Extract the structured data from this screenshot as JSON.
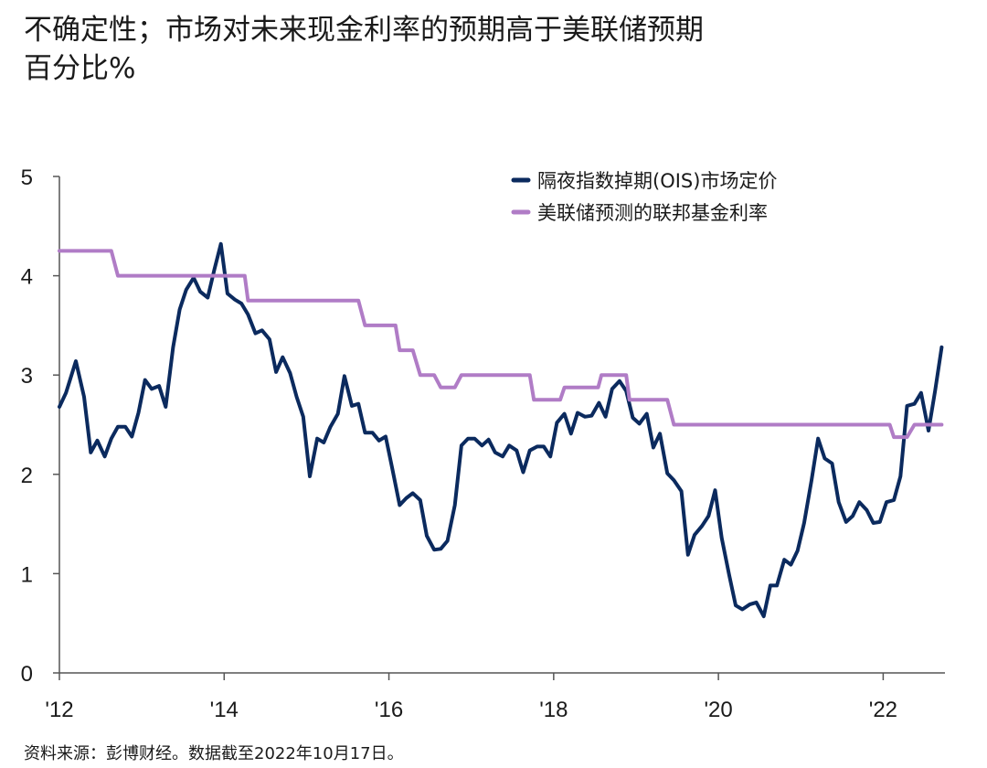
{
  "title": "不确定性；市场对未来现金利率的预期高于美联储预期",
  "subtitle": "百分比%",
  "source": "资料来源：彭博财经。数据截至2022年10月17日。",
  "colors": {
    "ois": "#0b2a5e",
    "fed": "#b07cc6",
    "axis": "#555555"
  },
  "chart_data": {
    "type": "line",
    "xlim": [
      2012,
      2022.75
    ],
    "ylim": [
      0,
      5
    ],
    "x_ticks": [
      2012,
      2014,
      2016,
      2018,
      2020,
      2022
    ],
    "x_tick_labels": [
      "'12",
      "'14",
      "'16",
      "'18",
      "'20",
      "'22"
    ],
    "y_ticks": [
      0,
      1,
      2,
      3,
      4,
      5
    ],
    "y_tick_labels": [
      "0",
      "1",
      "2",
      "3",
      "4",
      "5"
    ],
    "legend_position": "top-right",
    "series": [
      {
        "name": "隔夜指数掉期(OIS)市场定价",
        "color": "#0b2a5e",
        "x": [
          2012.0,
          2012.08,
          2012.2,
          2012.3,
          2012.38,
          2012.46,
          2012.55,
          2012.63,
          2012.71,
          2012.8,
          2012.88,
          2012.96,
          2013.04,
          2013.12,
          2013.21,
          2013.29,
          2013.38,
          2013.46,
          2013.54,
          2013.63,
          2013.71,
          2013.8,
          2013.88,
          2013.96,
          2014.04,
          2014.13,
          2014.21,
          2014.29,
          2014.38,
          2014.46,
          2014.55,
          2014.63,
          2014.71,
          2014.8,
          2014.88,
          2014.96,
          2015.04,
          2015.13,
          2015.21,
          2015.29,
          2015.38,
          2015.46,
          2015.55,
          2015.63,
          2015.71,
          2015.8,
          2015.88,
          2015.96,
          2016.04,
          2016.13,
          2016.21,
          2016.29,
          2016.38,
          2016.46,
          2016.55,
          2016.63,
          2016.71,
          2016.8,
          2016.88,
          2016.96,
          2017.04,
          2017.13,
          2017.21,
          2017.29,
          2017.38,
          2017.46,
          2017.55,
          2017.63,
          2017.71,
          2017.8,
          2017.88,
          2017.96,
          2018.04,
          2018.13,
          2018.21,
          2018.29,
          2018.38,
          2018.46,
          2018.55,
          2018.63,
          2018.71,
          2018.8,
          2018.88,
          2018.96,
          2019.04,
          2019.13,
          2019.21,
          2019.29,
          2019.38,
          2019.46,
          2019.55,
          2019.63,
          2019.71,
          2019.8,
          2019.88,
          2019.96,
          2020.04,
          2020.13,
          2020.21,
          2020.29,
          2020.38,
          2020.46,
          2020.55,
          2020.63,
          2020.71,
          2020.8,
          2020.88,
          2020.96,
          2021.04,
          2021.13,
          2021.21,
          2021.29,
          2021.38,
          2021.46,
          2021.55,
          2021.63,
          2021.71,
          2021.8,
          2021.88,
          2021.96,
          2022.04,
          2022.13,
          2022.21,
          2022.29,
          2022.38,
          2022.46,
          2022.55,
          2022.63,
          2022.71
        ],
        "y": [
          2.68,
          2.82,
          3.14,
          2.78,
          2.22,
          2.34,
          2.18,
          2.36,
          2.48,
          2.48,
          2.38,
          2.62,
          2.95,
          2.86,
          2.89,
          2.68,
          3.28,
          3.66,
          3.86,
          3.98,
          3.84,
          3.78,
          4.06,
          4.32,
          3.82,
          3.76,
          3.72,
          3.61,
          3.42,
          3.45,
          3.36,
          3.03,
          3.18,
          3.02,
          2.78,
          2.58,
          1.98,
          2.36,
          2.32,
          2.48,
          2.61,
          2.99,
          2.69,
          2.71,
          2.42,
          2.42,
          2.34,
          2.38,
          2.06,
          1.69,
          1.76,
          1.81,
          1.74,
          1.38,
          1.24,
          1.25,
          1.33,
          1.69,
          2.29,
          2.36,
          2.36,
          2.29,
          2.35,
          2.22,
          2.18,
          2.29,
          2.24,
          2.02,
          2.24,
          2.28,
          2.28,
          2.18,
          2.52,
          2.61,
          2.41,
          2.62,
          2.58,
          2.59,
          2.72,
          2.58,
          2.86,
          2.94,
          2.84,
          2.57,
          2.51,
          2.61,
          2.27,
          2.41,
          2.01,
          1.94,
          1.83,
          1.19,
          1.39,
          1.48,
          1.58,
          1.84,
          1.36,
          0.99,
          0.68,
          0.64,
          0.69,
          0.71,
          0.57,
          0.88,
          0.88,
          1.14,
          1.09,
          1.23,
          1.51,
          1.94,
          2.36,
          2.16,
          2.11,
          1.72,
          1.52,
          1.58,
          1.72,
          1.64,
          1.51,
          1.52,
          1.72,
          1.74,
          1.98,
          2.69,
          2.71,
          2.82,
          2.44,
          2.84,
          3.28
        ]
      },
      {
        "name": "美联储预测的联邦基金利率",
        "color": "#b07cc6",
        "x": [
          2012.0,
          2012.63,
          2012.71,
          2014.21,
          2014.25,
          2014.29,
          2015.63,
          2015.71,
          2016.08,
          2016.13,
          2016.21,
          2016.29,
          2016.38,
          2016.55,
          2016.63,
          2016.8,
          2016.88,
          2017.71,
          2017.76,
          2018.08,
          2018.13,
          2018.54,
          2018.58,
          2018.88,
          2018.92,
          2019.38,
          2019.46,
          2022.08,
          2022.13,
          2022.29,
          2022.38,
          2022.71
        ],
        "y": [
          4.25,
          4.25,
          4.0,
          4.0,
          4.0,
          3.75,
          3.75,
          3.5,
          3.5,
          3.25,
          3.25,
          3.25,
          3.0,
          3.0,
          2.875,
          2.875,
          3.0,
          3.0,
          2.75,
          2.75,
          2.875,
          2.875,
          3.0,
          3.0,
          2.75,
          2.75,
          2.5,
          2.5,
          2.375,
          2.375,
          2.5,
          2.5
        ]
      }
    ]
  }
}
